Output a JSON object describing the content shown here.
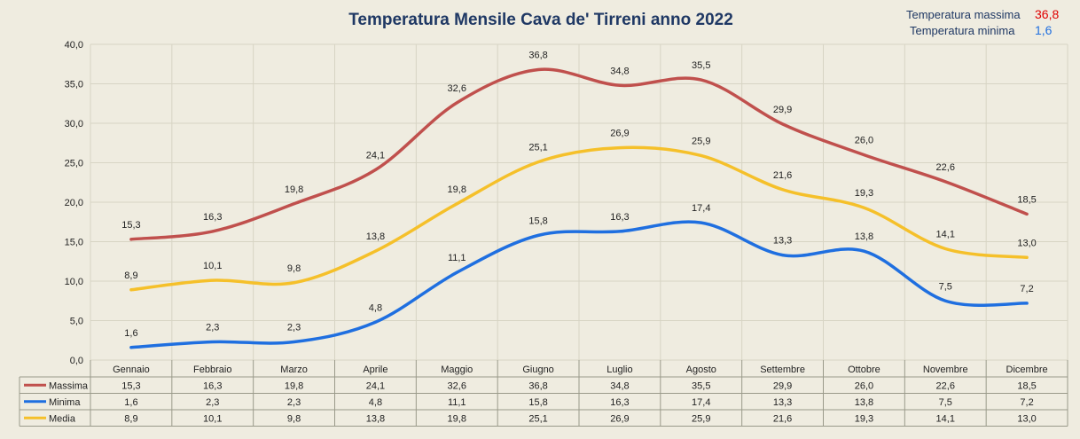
{
  "chart_data": {
    "type": "line",
    "title": "Temperatura Mensile Cava de' Tirreni anno 2022",
    "xlabel": "",
    "ylabel": "",
    "ylim": [
      0,
      40
    ],
    "yticks": [
      "0,0",
      "5,0",
      "10,0",
      "15,0",
      "20,0",
      "25,0",
      "30,0",
      "35,0",
      "40,0"
    ],
    "grid": true,
    "categories": [
      "Gennaio",
      "Febbraio",
      "Marzo",
      "Aprile",
      "Maggio",
      "Giugno",
      "Luglio",
      "Agosto",
      "Settembre",
      "Ottobre",
      "Novembre",
      "Dicembre"
    ],
    "series": [
      {
        "name": "Massima",
        "color": "#c0504d",
        "values": [
          15.3,
          16.3,
          19.8,
          24.1,
          32.6,
          36.8,
          34.8,
          35.5,
          29.9,
          26.0,
          22.6,
          18.5
        ],
        "labels": [
          "15,3",
          "16,3",
          "19,8",
          "24,1",
          "32,6",
          "36,8",
          "34,8",
          "35,5",
          "29,9",
          "26,0",
          "22,6",
          "18,5"
        ]
      },
      {
        "name": "Minima",
        "color": "#1f6fe0",
        "values": [
          1.6,
          2.3,
          2.3,
          4.8,
          11.1,
          15.8,
          16.3,
          17.4,
          13.3,
          13.8,
          7.5,
          7.2
        ],
        "labels": [
          "1,6",
          "2,3",
          "2,3",
          "4,8",
          "11,1",
          "15,8",
          "16,3",
          "17,4",
          "13,3",
          "13,8",
          "7,5",
          "7,2"
        ]
      },
      {
        "name": "Media",
        "color": "#f5c02a",
        "values": [
          8.9,
          10.1,
          9.8,
          13.8,
          19.8,
          25.1,
          26.9,
          25.9,
          21.6,
          19.3,
          14.1,
          13.0
        ],
        "labels": [
          "8,9",
          "10,1",
          "9,8",
          "13,8",
          "19,8",
          "25,1",
          "26,9",
          "25,9",
          "21,6",
          "19,3",
          "14,1",
          "13,0"
        ]
      }
    ],
    "annotations": {
      "max_label": "Temperatura massima",
      "max_value": "36,8",
      "max_color": "#e00000",
      "min_label": "Temperatura minima",
      "min_value": "1,6",
      "min_color": "#1f6fe0"
    }
  }
}
